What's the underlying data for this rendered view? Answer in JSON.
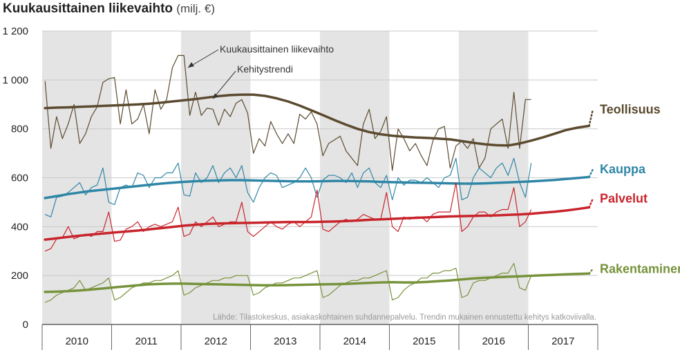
{
  "chart_data": {
    "type": "line",
    "title": "Kuukausittainen liikevaihto",
    "unit": "(milj. €)",
    "ylim": [
      0,
      1200
    ],
    "yticks": [
      {
        "value": 0,
        "label": "0"
      },
      {
        "value": 200,
        "label": "200"
      },
      {
        "value": 400,
        "label": "400"
      },
      {
        "value": 600,
        "label": "600"
      },
      {
        "value": 800,
        "label": "800"
      },
      {
        "value": 1000,
        "label": "1 000"
      },
      {
        "value": 1200,
        "label": "1 200"
      }
    ],
    "years": [
      "2010",
      "2011",
      "2012",
      "2013",
      "2014",
      "2015",
      "2016",
      "2017"
    ],
    "x_start": "2010-01",
    "months_observed": 85,
    "grid": "horizontal",
    "annotations": [
      "Kuukausittainen liikevaihto",
      "Kehitystrendi"
    ],
    "source": "Lähde: Tilastokeskus, asiakaskohtainen suhdannepalvelu. Trendin mukainen ennustettu kehitys katkoviivalla.",
    "series": [
      {
        "name": "Teollisuus",
        "color": "#5b4a2f",
        "monthly": [
          995,
          720,
          850,
          760,
          820,
          900,
          740,
          780,
          850,
          890,
          990,
          1005,
          1010,
          820,
          960,
          820,
          840,
          900,
          780,
          960,
          880,
          920,
          1050,
          1100,
          1100,
          855,
          950,
          855,
          885,
          880,
          815,
          880,
          850,
          905,
          920,
          865,
          700,
          760,
          730,
          830,
          780,
          740,
          780,
          740,
          860,
          840,
          870,
          820,
          690,
          740,
          755,
          770,
          710,
          680,
          650,
          820,
          880,
          760,
          790,
          850,
          630,
          800,
          760,
          710,
          740,
          690,
          650,
          750,
          800,
          810,
          640,
          730,
          750,
          720,
          760,
          640,
          680,
          800,
          820,
          840,
          720,
          950,
          720,
          920,
          920
        ],
        "trend": [
          885,
          887,
          888,
          890,
          892,
          894,
          896,
          898,
          900,
          903,
          907,
          912,
          917,
          922,
          928,
          934,
          938,
          940,
          940,
          935,
          925,
          912,
          895,
          876,
          856,
          836,
          817,
          800,
          787,
          778,
          772,
          768,
          765,
          763,
          760,
          757,
          750,
          743,
          737,
          733,
          732,
          740,
          752,
          765,
          780,
          795,
          805,
          812
        ],
        "trend_month_start": 0,
        "trend_month_step": 2,
        "forecast_end": 880
      },
      {
        "name": "Kauppa",
        "color": "#2e86a6",
        "monthly": [
          450,
          440,
          520,
          525,
          540,
          560,
          580,
          530,
          560,
          570,
          640,
          500,
          490,
          560,
          570,
          560,
          620,
          610,
          560,
          600,
          600,
          620,
          620,
          660,
          530,
          525,
          620,
          580,
          600,
          650,
          580,
          620,
          640,
          600,
          650,
          540,
          500,
          560,
          600,
          620,
          610,
          560,
          570,
          580,
          600,
          640,
          600,
          520,
          590,
          610,
          610,
          600,
          580,
          620,
          560,
          620,
          640,
          580,
          560,
          610,
          510,
          600,
          570,
          590,
          590,
          580,
          600,
          580,
          560,
          600,
          610,
          680,
          510,
          520,
          600,
          640,
          620,
          600,
          640,
          660,
          610,
          680,
          580,
          520,
          660
        ],
        "trend": [
          517,
          525,
          533,
          540,
          546,
          551,
          556,
          561,
          566,
          571,
          576,
          580,
          583,
          586,
          588,
          589,
          590,
          590,
          589,
          588,
          587,
          586,
          585,
          585,
          586,
          587,
          587,
          586,
          585,
          583,
          582,
          581,
          580,
          579,
          578,
          577,
          576,
          576,
          577,
          579,
          581,
          583,
          585,
          588,
          591,
          595,
          599,
          603
        ],
        "trend_month_start": 0,
        "trend_month_step": 2,
        "forecast_end": 635
      },
      {
        "name": "Palvelut",
        "color": "#c8242b",
        "monthly": [
          300,
          310,
          350,
          355,
          400,
          350,
          360,
          370,
          360,
          380,
          380,
          460,
          340,
          345,
          390,
          400,
          420,
          380,
          400,
          410,
          400,
          410,
          420,
          480,
          360,
          370,
          420,
          400,
          420,
          440,
          400,
          410,
          420,
          420,
          500,
          380,
          360,
          380,
          400,
          420,
          400,
          390,
          410,
          420,
          400,
          420,
          440,
          550,
          390,
          380,
          400,
          420,
          430,
          420,
          430,
          450,
          440,
          430,
          430,
          540,
          400,
          380,
          440,
          430,
          440,
          440,
          420,
          450,
          460,
          460,
          460,
          580,
          380,
          400,
          440,
          460,
          460,
          440,
          460,
          470,
          470,
          560,
          400,
          420,
          470
        ],
        "trend": [
          347,
          352,
          358,
          363,
          368,
          372,
          376,
          380,
          384,
          389,
          394,
          399,
          404,
          408,
          411,
          413,
          414,
          415,
          416,
          417,
          418,
          419,
          419,
          419,
          420,
          421,
          423,
          425,
          428,
          430,
          432,
          434,
          436,
          438,
          440,
          442,
          443,
          444,
          445,
          446,
          448,
          450,
          453,
          457,
          461,
          466,
          472,
          479
        ],
        "trend_month_start": 0,
        "trend_month_step": 2,
        "forecast_end": 515
      },
      {
        "name": "Rakentaminen",
        "color": "#76923a",
        "monthly": [
          90,
          100,
          120,
          130,
          140,
          150,
          180,
          140,
          150,
          160,
          170,
          190,
          100,
          110,
          130,
          150,
          160,
          170,
          170,
          180,
          180,
          190,
          200,
          220,
          120,
          130,
          150,
          160,
          170,
          180,
          180,
          190,
          190,
          200,
          200,
          200,
          120,
          130,
          150,
          160,
          170,
          170,
          180,
          190,
          190,
          200,
          210,
          220,
          110,
          120,
          140,
          160,
          170,
          180,
          180,
          190,
          190,
          200,
          210,
          220,
          100,
          110,
          140,
          160,
          170,
          190,
          190,
          210,
          210,
          220,
          220,
          230,
          110,
          120,
          170,
          180,
          180,
          190,
          200,
          210,
          210,
          250,
          150,
          140,
          200
        ],
        "trend": [
          133,
          134,
          136,
          139,
          143,
          147,
          152,
          156,
          160,
          164,
          166,
          167,
          167,
          166,
          165,
          164,
          163,
          162,
          161,
          160,
          160,
          161,
          162,
          163,
          164,
          165,
          166,
          168,
          170,
          172,
          173,
          172,
          172,
          174,
          177,
          180,
          184,
          188,
          191,
          193,
          195,
          197,
          199,
          201,
          203,
          205,
          207,
          208
        ],
        "trend_month_start": 0,
        "trend_month_step": 2,
        "forecast_end": 228
      }
    ]
  }
}
